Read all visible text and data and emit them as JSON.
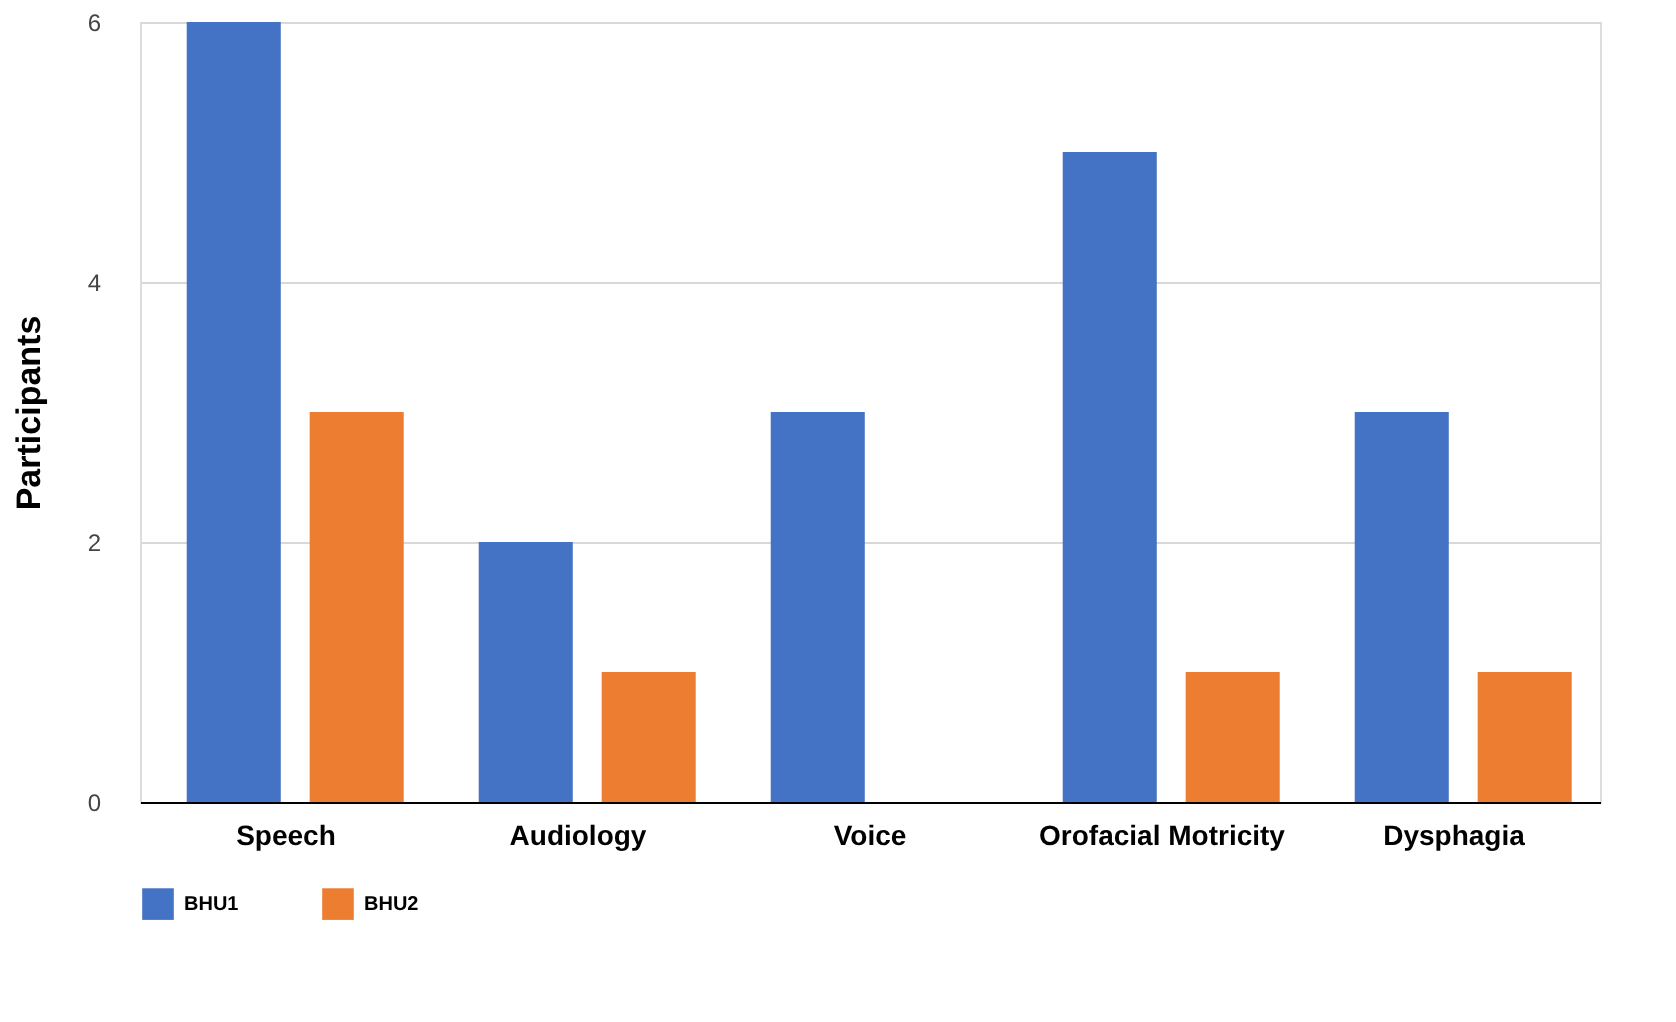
{
  "chart_data": {
    "type": "bar",
    "ylabel": "Participants",
    "categories": [
      "Speech",
      "Audiology",
      "Voice",
      "Orofacial Motricity",
      "Dysphagia"
    ],
    "series": [
      {
        "name": "BHU1",
        "color": "#4472c4",
        "values": [
          6,
          2,
          3,
          5,
          3
        ]
      },
      {
        "name": "BHU2",
        "color": "#ed7d31",
        "values": [
          3,
          1,
          null,
          1,
          1
        ]
      }
    ],
    "ylim": [
      0,
      6
    ],
    "yticks": [
      0,
      2,
      4,
      6
    ],
    "grid": "y",
    "legend": "bottom"
  }
}
